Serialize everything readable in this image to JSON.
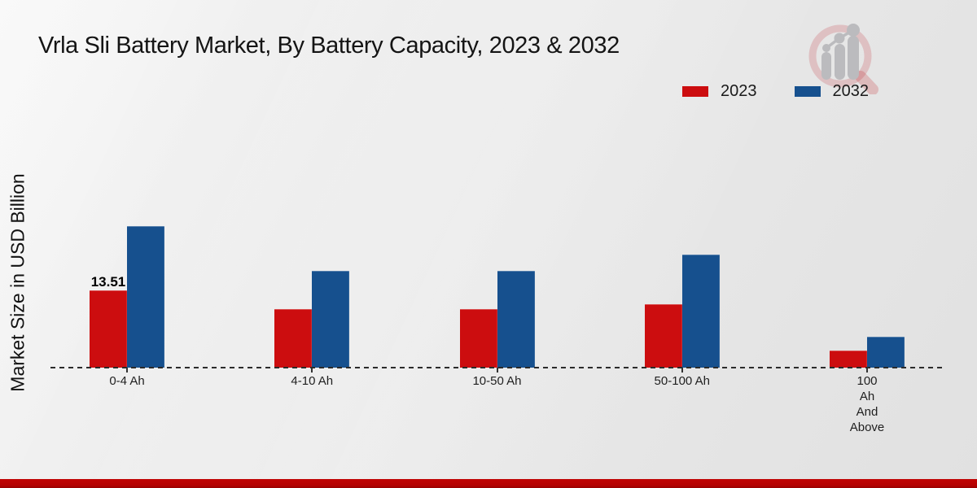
{
  "page": {
    "title": "Vrla Sli Battery Market, By Battery Capacity, 2023 & 2032"
  },
  "colors": {
    "series_2023": "#cc0d0f",
    "series_2032": "#16508e",
    "bottom_band": "#b50202",
    "axis_dash": "#2b2b2b"
  },
  "chart_data": {
    "type": "bar",
    "title": "Vrla Sli Battery Market, By Battery Capacity, 2023 & 2032",
    "xlabel": "",
    "ylabel": "Market Size in USD Billion",
    "categories": [
      "0-4 Ah",
      "4-10 Ah",
      "10-50 Ah",
      "50-100 Ah",
      "100 Ah And Above"
    ],
    "tick_label_lines": [
      [
        "0-4 Ah"
      ],
      [
        "4-10 Ah"
      ],
      [
        "10-50 Ah"
      ],
      [
        "50-100 Ah"
      ],
      [
        "100",
        "Ah",
        "And",
        "Above"
      ]
    ],
    "series": [
      {
        "name": "2023",
        "color": "#cc0d0f",
        "values": [
          13.51,
          10.2,
          10.2,
          11.1,
          3.0
        ]
      },
      {
        "name": "2032",
        "color": "#16508e",
        "values": [
          24.7,
          16.9,
          16.9,
          19.8,
          5.4
        ]
      }
    ],
    "annotations": [
      {
        "text": "13.51",
        "series_index": 0,
        "category_index": 0
      }
    ],
    "ylim": [
      0,
      28
    ],
    "grid": false,
    "baseline_style": "dashed",
    "legend_position": "top-right"
  },
  "logo": {
    "name": "market-research-magnifier-logo"
  }
}
